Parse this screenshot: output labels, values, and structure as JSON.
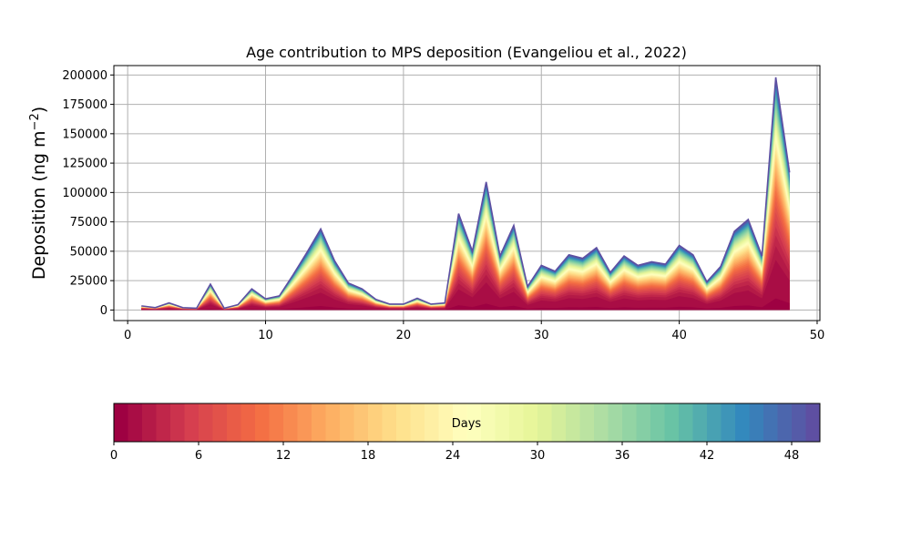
{
  "chart_data": {
    "type": "area",
    "title": "Age contribution to MPS deposition (Evangeliou et al., 2022)",
    "xlabel": "",
    "ylabel": "Deposition (ng m",
    "ylabel_exponent": "−2",
    "ylabel_suffix": ")",
    "xlim": [
      -1,
      50.2
    ],
    "ylim": [
      -9000,
      208000
    ],
    "x_ticks": [
      0,
      10,
      20,
      30,
      40,
      50
    ],
    "x_tick_labels": [
      "0",
      "10",
      "20",
      "30",
      "40",
      "50"
    ],
    "y_ticks": [
      0,
      25000,
      50000,
      75000,
      100000,
      125000,
      150000,
      175000,
      200000
    ],
    "y_tick_labels": [
      "0",
      "25000",
      "50000",
      "75000",
      "100000",
      "125000",
      "150000",
      "175000",
      "200000"
    ],
    "grid": true,
    "stack_layers": 50,
    "x": [
      1,
      2,
      3,
      4,
      5,
      6,
      7,
      8,
      9,
      10,
      11,
      12,
      13,
      14,
      15,
      16,
      17,
      18,
      19,
      20,
      21,
      22,
      23,
      24,
      25,
      26,
      27,
      28,
      29,
      30,
      31,
      32,
      33,
      34,
      35,
      36,
      37,
      38,
      39,
      40,
      41,
      42,
      43,
      44,
      45,
      46,
      47,
      48
    ],
    "total": [
      3500,
      2000,
      6000,
      2000,
      1500,
      22000,
      1500,
      4500,
      18000,
      9500,
      12000,
      30000,
      49000,
      69000,
      42000,
      23000,
      18000,
      9000,
      5000,
      5000,
      10000,
      5000,
      6000,
      82000,
      50000,
      109000,
      46000,
      72000,
      20000,
      38000,
      33000,
      47000,
      44000,
      53000,
      32000,
      46000,
      38000,
      41000,
      39000,
      55000,
      47000,
      24000,
      37000,
      67000,
      77000,
      46000,
      198000,
      117000
    ],
    "colorbar": {
      "label": "Days",
      "min": 0,
      "max": 50,
      "ticks": [
        0,
        6,
        12,
        18,
        24,
        30,
        36,
        42,
        48
      ],
      "tick_labels": [
        "0",
        "6",
        "12",
        "18",
        "24",
        "30",
        "36",
        "42",
        "48"
      ],
      "colormap": "Spectral"
    },
    "colors": {
      "line": "#5e4fa2",
      "grid": "#b0b0b0"
    }
  }
}
